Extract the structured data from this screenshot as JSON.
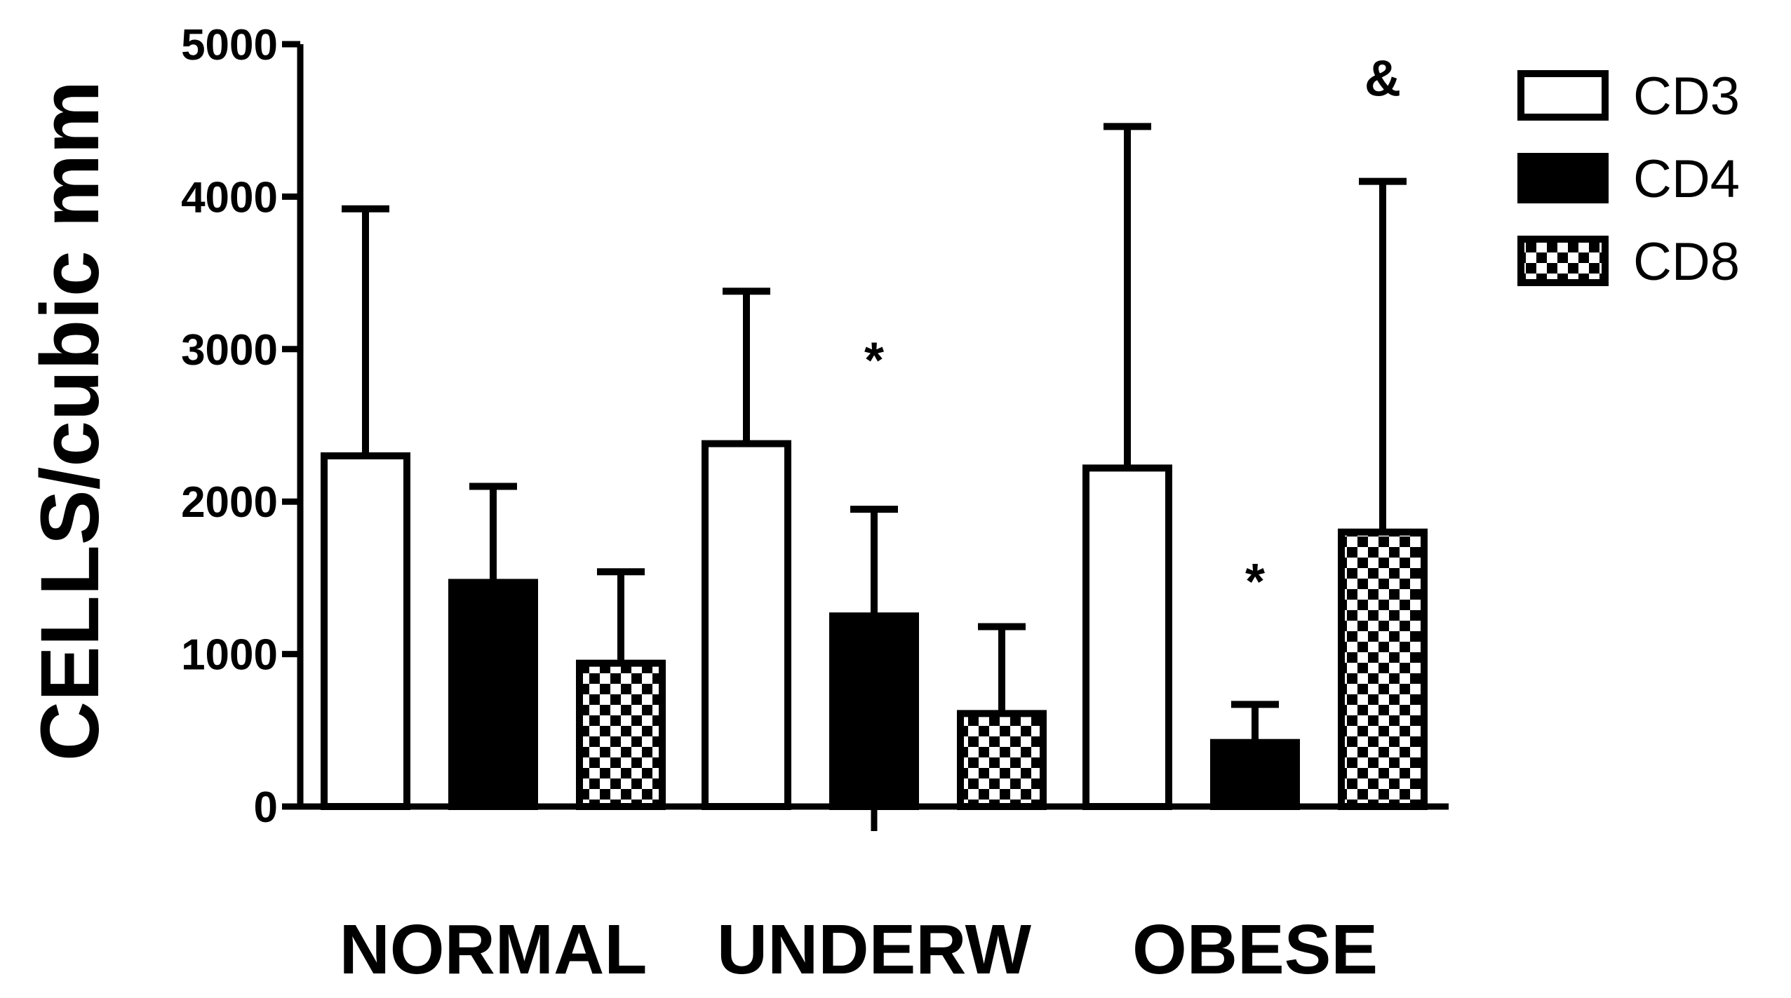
{
  "chart_data": {
    "type": "bar",
    "title": "",
    "xlabel": "",
    "ylabel": "CELLS/cubic mm",
    "ylim": [
      0,
      5000
    ],
    "yticks": [
      0,
      1000,
      2000,
      3000,
      4000,
      5000
    ],
    "categories": [
      "NORMAL",
      "UNDERW",
      "OBESE"
    ],
    "series": [
      {
        "name": "CD3",
        "fill": "white",
        "values": [
          2300,
          2380,
          2220
        ],
        "error": [
          1620,
          1000,
          2240
        ]
      },
      {
        "name": "CD4",
        "fill": "black",
        "values": [
          1470,
          1250,
          420
        ],
        "error": [
          630,
          700,
          250
        ]
      },
      {
        "name": "CD8",
        "fill": "checkered",
        "values": [
          940,
          610,
          1800
        ],
        "error": [
          600,
          570,
          2300
        ]
      }
    ],
    "annotations": [
      {
        "text": "*",
        "category": "UNDERW",
        "series": "CD4",
        "y": 2950
      },
      {
        "text": "*",
        "category": "OBESE",
        "series": "CD4",
        "y": 1500
      },
      {
        "text": "&",
        "category": "OBESE",
        "series": "CD8",
        "y": 4800
      }
    ],
    "legend": {
      "placement": "top-right"
    },
    "grid": false
  },
  "colors": {
    "bar_stroke": "#000000",
    "axis": "#000000",
    "background": "#ffffff"
  }
}
